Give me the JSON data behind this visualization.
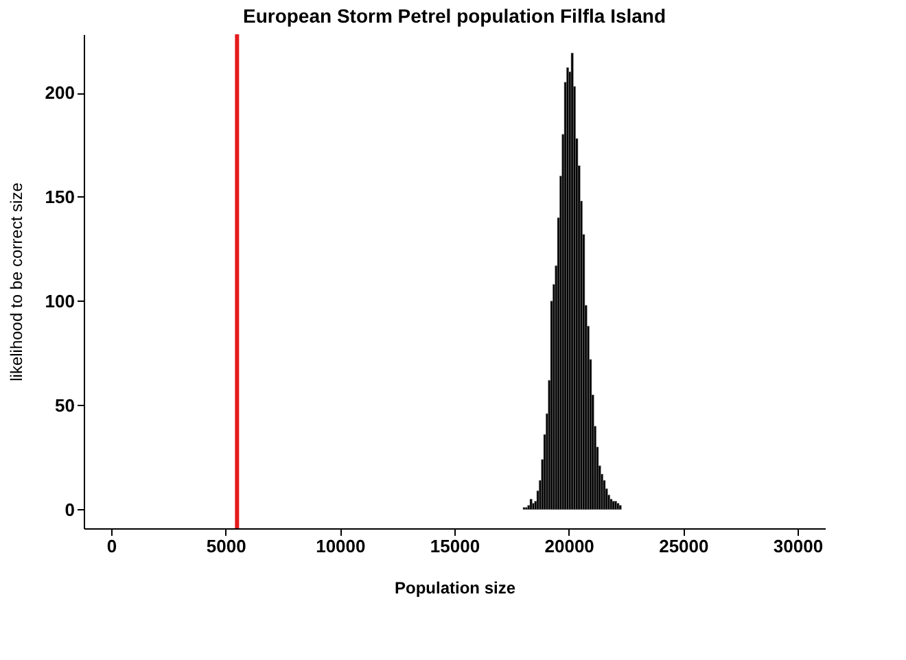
{
  "chart_data": {
    "type": "histogram",
    "title": "European Storm Petrel population Filfla Island",
    "xlabel": "Population size",
    "ylabel": "likelihood to be correct size",
    "bins": [
      18000,
      18100,
      18200,
      18300,
      18400,
      18500,
      18600,
      18700,
      18800,
      18900,
      19000,
      19100,
      19200,
      19300,
      19400,
      19500,
      19600,
      19700,
      19800,
      19900,
      20000,
      20100,
      20200,
      20300,
      20400,
      20500,
      20600,
      20700,
      20800,
      20900,
      21000,
      21100,
      21200,
      21300,
      21400,
      21500,
      21600,
      21700,
      21800,
      21900,
      22000,
      22100,
      22200,
      22300
    ],
    "values": [
      1,
      1,
      2,
      5,
      3,
      4,
      9,
      14,
      24,
      36,
      46,
      62,
      100,
      108,
      117,
      140,
      160,
      180,
      205,
      212,
      210,
      219,
      203,
      178,
      165,
      148,
      132,
      98,
      88,
      72,
      55,
      40,
      30,
      21,
      17,
      14,
      10,
      7,
      5,
      4,
      4,
      3,
      2
    ],
    "color": "#000000",
    "xlim": [
      -1200,
      31200
    ],
    "xticks": [
      0,
      5000,
      10000,
      15000,
      20000,
      25000,
      30000
    ],
    "ylim": [
      -9,
      228
    ],
    "yticks": [
      0,
      50,
      100,
      150,
      200
    ],
    "ref_lines": [
      {
        "axis": "x",
        "value": 5500,
        "color": "#e41a1c"
      }
    ],
    "grid": false
  }
}
